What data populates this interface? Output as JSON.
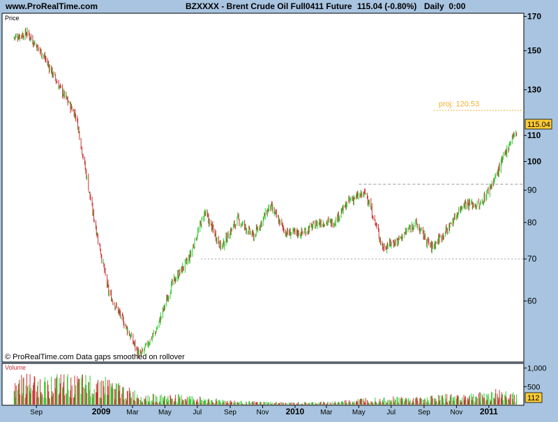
{
  "header": {
    "site": "www.ProRealTime.com",
    "symbol": "BZXXXX - Brent Crude Oil Full0411 Future",
    "quote": "115.04 (-0.80%)",
    "timeframe": "Daily  0:00"
  },
  "price_panel": {
    "label": "Price",
    "footer": "© ProRealTime.com  Data gaps smoothed on rollover",
    "last_price": "115.04",
    "projection_label": "proj: 120.53"
  },
  "volume_panel": {
    "label": "Volume",
    "last_volume": "112"
  },
  "colors": {
    "background": "#a8c4e0",
    "panel": "#ffffff",
    "up": "#33cc33",
    "down": "#cc3333",
    "projection": "#f0b030",
    "last_price_bg": "#ffcc33"
  },
  "chart_data": [
    {
      "type": "line",
      "subtype": "ohlc-bars",
      "title": "",
      "y_scale": "log",
      "ylim": [
        48,
        172
      ],
      "y_ticks": [
        60,
        70,
        80,
        90,
        100,
        110,
        130,
        150,
        170
      ],
      "x_ticks": [
        "Sep",
        "2009",
        "Mar",
        "May",
        "Jul",
        "Sep",
        "Nov",
        "2010",
        "Mar",
        "May",
        "Jul",
        "Sep",
        "Nov",
        "2011"
      ],
      "x": [
        "2008-07",
        "2008-08",
        "2008-09",
        "2008-10",
        "2008-11",
        "2008-12",
        "2009-01",
        "2009-02",
        "2009-03",
        "2009-04",
        "2009-05",
        "2009-06",
        "2009-07",
        "2009-08",
        "2009-09",
        "2009-10",
        "2009-11",
        "2009-12",
        "2010-01",
        "2010-02",
        "2010-03",
        "2010-04",
        "2010-05",
        "2010-06",
        "2010-07",
        "2010-08",
        "2010-09",
        "2010-10",
        "2010-11",
        "2010-12",
        "2011-01",
        "2011-02"
      ],
      "series": [
        {
          "values": [
            157,
            160,
            147,
            131,
            118,
            84,
            62,
            55,
            49,
            54,
            64,
            70,
            83,
            73,
            81,
            76,
            85,
            77,
            77,
            80,
            80,
            87,
            89,
            73,
            75,
            80,
            73,
            78,
            86,
            85,
            95,
            110
          ]
        }
      ],
      "annotations": {
        "resistance": 92,
        "support": 70,
        "projection": 120.53,
        "last_price": 115.04
      }
    },
    {
      "type": "bar",
      "title": "",
      "y_ticks": [
        500,
        1000
      ],
      "y_tick_labels": [
        "500",
        "1,000"
      ],
      "x": [
        "2008-08",
        "2008-09",
        "2008-10",
        "2008-11",
        "2008-12",
        "2009-01",
        "2009-02",
        "2009-03",
        "2009-04",
        "2009-05",
        "2009-06",
        "2009-07",
        "2009-08",
        "2009-09",
        "2009-10",
        "2009-11",
        "2009-12",
        "2010-01",
        "2010-02",
        "2010-03",
        "2010-04",
        "2010-05",
        "2010-06",
        "2010-07",
        "2010-08",
        "2010-09",
        "2010-10",
        "2010-11",
        "2010-12",
        "2011-01",
        "2011-02"
      ],
      "values": [
        640,
        560,
        620,
        580,
        620,
        560,
        380,
        260,
        210,
        220,
        200,
        160,
        130,
        90,
        80,
        70,
        60,
        60,
        70,
        80,
        110,
        160,
        180,
        180,
        160,
        200,
        220,
        240,
        260,
        320,
        300
      ]
    }
  ]
}
